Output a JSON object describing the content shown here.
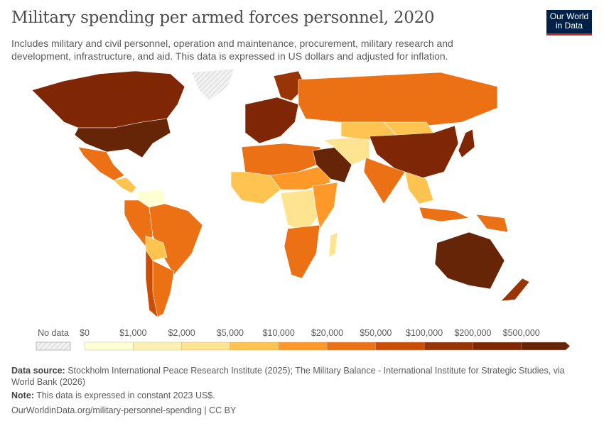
{
  "title": "Military spending per armed forces personnel, 2020",
  "subtitle": "Includes military and civil personnel, operation and maintenance, procurement, military research and development, infrastructure, and aid. This data is expressed in US dollars and adjusted for inflation.",
  "logo": {
    "line1": "Our World",
    "line2": "in Data"
  },
  "legend": {
    "no_data_label": "No data",
    "bins": [
      "$0",
      "$1,000",
      "$2,000",
      "$5,000",
      "$10,000",
      "$20,000",
      "$50,000",
      "$100,000",
      "$200,000",
      "$500,000"
    ],
    "colors": [
      "#ffffd4",
      "#fef0b2",
      "#fee391",
      "#fec44f",
      "#fe9929",
      "#ec7014",
      "#cc4c02",
      "#993404",
      "#7f2704",
      "#662506"
    ],
    "no_data_color": "#e8e8e8"
  },
  "regions": [
    {
      "id": "canada",
      "bin": 8
    },
    {
      "id": "usa",
      "bin": 9
    },
    {
      "id": "greenland",
      "bin": -1
    },
    {
      "id": "mexico",
      "bin": 5
    },
    {
      "id": "central-america",
      "bin": 3
    },
    {
      "id": "venezuela",
      "bin": 0
    },
    {
      "id": "colombia-andes",
      "bin": 5
    },
    {
      "id": "brazil",
      "bin": 5
    },
    {
      "id": "bolivia",
      "bin": 3
    },
    {
      "id": "argentina",
      "bin": 5
    },
    {
      "id": "chile",
      "bin": 6
    },
    {
      "id": "western-europe",
      "bin": 8
    },
    {
      "id": "scandinavia",
      "bin": 7
    },
    {
      "id": "russia",
      "bin": 5
    },
    {
      "id": "north-africa",
      "bin": 5
    },
    {
      "id": "sahel",
      "bin": 4
    },
    {
      "id": "west-africa",
      "bin": 3
    },
    {
      "id": "central-africa",
      "bin": 2
    },
    {
      "id": "east-africa",
      "bin": 4
    },
    {
      "id": "southern-africa",
      "bin": 5
    },
    {
      "id": "madagascar",
      "bin": 2
    },
    {
      "id": "saudi-arabia",
      "bin": 9
    },
    {
      "id": "iran-region",
      "bin": 2
    },
    {
      "id": "central-asia",
      "bin": 3
    },
    {
      "id": "mongolia",
      "bin": 3
    },
    {
      "id": "china",
      "bin": 8
    },
    {
      "id": "india",
      "bin": 5
    },
    {
      "id": "southeast-asia",
      "bin": 3
    },
    {
      "id": "japan",
      "bin": 8
    },
    {
      "id": "indonesia",
      "bin": 5
    },
    {
      "id": "papua",
      "bin": 5
    },
    {
      "id": "australia",
      "bin": 9
    },
    {
      "id": "new-zealand",
      "bin": 7
    }
  ],
  "footer": {
    "source_label": "Data source:",
    "source_text": "Stockholm International Peace Research Institute (2025); The Military Balance - International Institute for Strategic Studies, via World Bank (2026)",
    "note_label": "Note:",
    "note_text": "This data is expressed in constant 2023 US$.",
    "url": "OurWorldinData.org/military-personnel-spending | CC BY"
  }
}
